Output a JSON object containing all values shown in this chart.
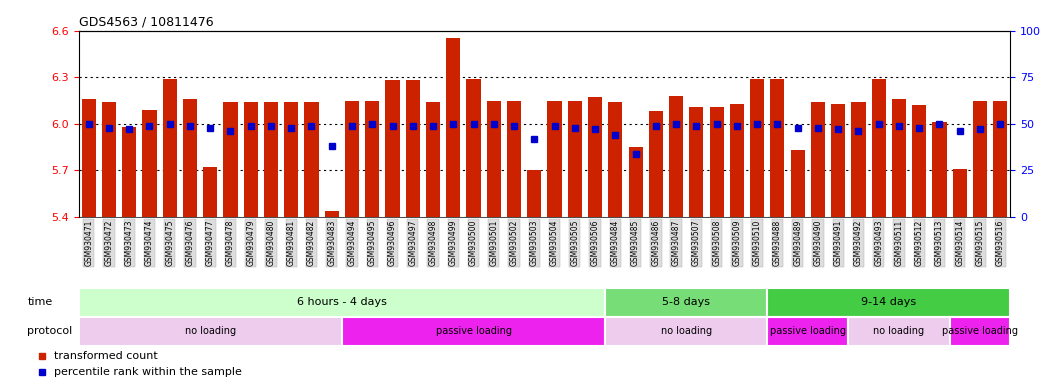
{
  "title": "GDS4563 / 10811476",
  "samples": [
    "GSM930471",
    "GSM930472",
    "GSM930473",
    "GSM930474",
    "GSM930475",
    "GSM930476",
    "GSM930477",
    "GSM930478",
    "GSM930479",
    "GSM930480",
    "GSM930481",
    "GSM930482",
    "GSM930483",
    "GSM930494",
    "GSM930495",
    "GSM930496",
    "GSM930497",
    "GSM930498",
    "GSM930499",
    "GSM930500",
    "GSM930501",
    "GSM930502",
    "GSM930503",
    "GSM930504",
    "GSM930505",
    "GSM930506",
    "GSM930484",
    "GSM930485",
    "GSM930486",
    "GSM930487",
    "GSM930507",
    "GSM930508",
    "GSM930509",
    "GSM930510",
    "GSM930488",
    "GSM930489",
    "GSM930490",
    "GSM930491",
    "GSM930492",
    "GSM930493",
    "GSM930511",
    "GSM930512",
    "GSM930513",
    "GSM930514",
    "GSM930515",
    "GSM930516"
  ],
  "bar_values": [
    6.16,
    6.14,
    5.98,
    6.09,
    6.29,
    6.16,
    5.72,
    6.14,
    6.14,
    6.14,
    6.14,
    6.14,
    5.44,
    6.15,
    6.15,
    6.28,
    6.28,
    6.14,
    6.55,
    6.29,
    6.15,
    6.15,
    5.7,
    6.15,
    6.15,
    6.17,
    6.14,
    5.85,
    6.08,
    6.18,
    6.11,
    6.11,
    6.13,
    6.29,
    6.29,
    5.83,
    6.14,
    6.13,
    6.14,
    6.29,
    6.16,
    6.12,
    6.01,
    5.71,
    6.15,
    6.15
  ],
  "percentile_values": [
    50,
    48,
    47,
    49,
    50,
    49,
    48,
    46,
    49,
    49,
    48,
    49,
    38,
    49,
    50,
    49,
    49,
    49,
    50,
    50,
    50,
    49,
    42,
    49,
    48,
    47,
    44,
    34,
    49,
    50,
    49,
    50,
    49,
    50,
    50,
    48,
    48,
    47,
    46,
    50,
    49,
    48,
    50,
    46,
    47,
    50
  ],
  "ylim_left": [
    5.4,
    6.6
  ],
  "ylim_right": [
    0,
    100
  ],
  "yticks_left": [
    5.4,
    5.7,
    6.0,
    6.3,
    6.6
  ],
  "yticks_right": [
    0,
    25,
    50,
    75,
    100
  ],
  "bar_color": "#cc2200",
  "dot_color": "#0000cc",
  "time_groups": [
    {
      "label": "6 hours - 4 days",
      "start": 0,
      "end": 25,
      "color": "#ccffcc"
    },
    {
      "label": "5-8 days",
      "start": 26,
      "end": 33,
      "color": "#77dd77"
    },
    {
      "label": "9-14 days",
      "start": 34,
      "end": 45,
      "color": "#44cc44"
    }
  ],
  "protocol_groups": [
    {
      "label": "no loading",
      "start": 0,
      "end": 12,
      "color": "#eeccee"
    },
    {
      "label": "passive loading",
      "start": 13,
      "end": 25,
      "color": "#ee22ee"
    },
    {
      "label": "no loading",
      "start": 26,
      "end": 33,
      "color": "#eeccee"
    },
    {
      "label": "passive loading",
      "start": 34,
      "end": 37,
      "color": "#ee22ee"
    },
    {
      "label": "no loading",
      "start": 38,
      "end": 42,
      "color": "#eeccee"
    },
    {
      "label": "passive loading",
      "start": 43,
      "end": 45,
      "color": "#ee22ee"
    }
  ],
  "legend_items": [
    {
      "label": "transformed count",
      "color": "#cc2200"
    },
    {
      "label": "percentile rank within the sample",
      "color": "#0000cc"
    }
  ],
  "fig_width": 10.47,
  "fig_height": 3.84
}
